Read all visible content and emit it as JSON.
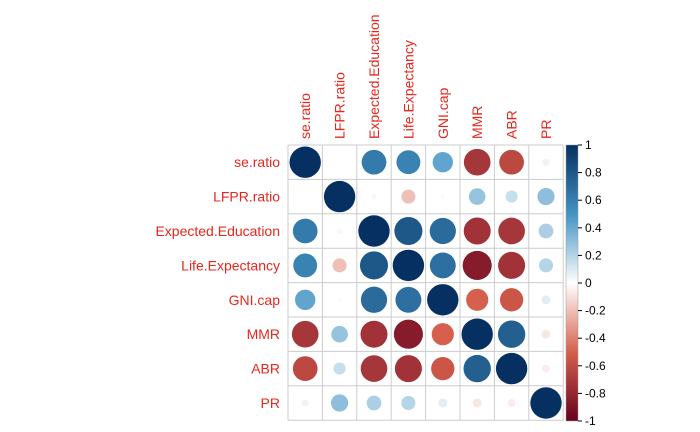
{
  "chart_data": {
    "type": "heatmap",
    "variables": [
      "se.ratio",
      "LFPR.ratio",
      "Expected.Education",
      "Life.Expectancy",
      "GNI.cap",
      "MMR",
      "ABR",
      "PR"
    ],
    "matrix": [
      [
        1.0,
        0.0,
        0.62,
        0.58,
        0.42,
        -0.72,
        -0.62,
        0.05
      ],
      [
        0.0,
        1.0,
        0.03,
        -0.2,
        0.02,
        0.28,
        0.15,
        0.3
      ],
      [
        0.62,
        0.03,
        1.0,
        0.8,
        0.7,
        -0.74,
        -0.72,
        0.22
      ],
      [
        0.58,
        -0.2,
        0.8,
        1.0,
        0.68,
        -0.86,
        -0.74,
        0.2
      ],
      [
        0.42,
        0.02,
        0.7,
        0.68,
        1.0,
        -0.5,
        -0.55,
        0.08
      ],
      [
        -0.72,
        0.28,
        -0.74,
        -0.86,
        -0.5,
        1.0,
        0.76,
        -0.08
      ],
      [
        -0.62,
        0.15,
        -0.72,
        -0.74,
        -0.55,
        0.76,
        1.0,
        -0.06
      ],
      [
        0.05,
        0.3,
        0.22,
        0.2,
        0.08,
        -0.08,
        -0.06,
        1.0
      ]
    ],
    "colorbar_ticks": [
      "1",
      "0.8",
      "0.6",
      "0.4",
      "0.2",
      "0",
      "-0.2",
      "-0.4",
      "-0.6",
      "-0.8",
      "-1"
    ],
    "colors": {
      "strong_negative": "#67001F",
      "negative": "#D6604D",
      "neutral": "#FFFFFF",
      "positive": "#4393C3",
      "strong_positive": "#053061",
      "label": "#e8261e",
      "grid": "#cccccc"
    }
  }
}
